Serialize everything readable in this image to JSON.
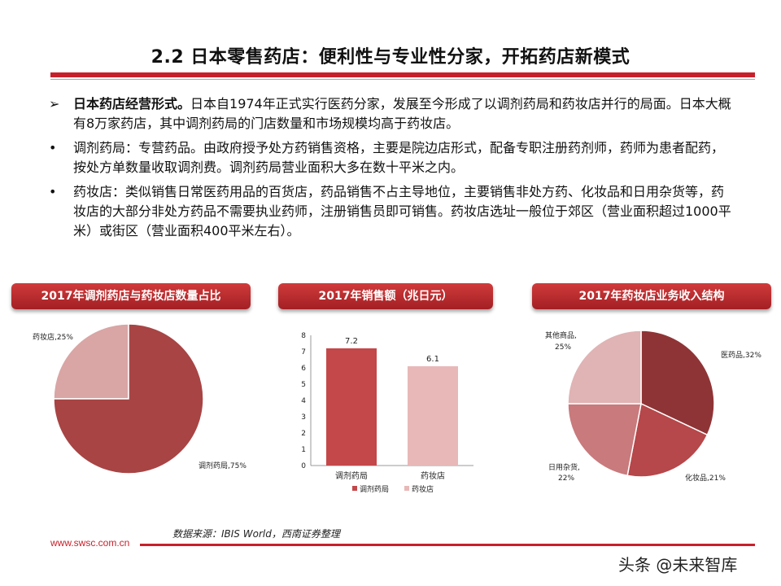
{
  "slide": {
    "title": "2.2 日本零售药店：便利性与专业性分家，开拓药店新模式",
    "bullets": [
      {
        "marker": "➢",
        "bold": "日本药店经营形式。",
        "text": "日本自1974年正式实行医药分家，发展至今形成了以调剂药局和药妆店并行的局面。日本大概有8万家药店，其中调剂药局的门店数量和市场规模均高于药妆店。"
      },
      {
        "marker": "•",
        "bold": "",
        "text": "调剂药局：专营药品。由政府授予处方药销售资格，主要是院边店形式，配备专职注册药剂师，药师为患者配药，按处方单数量收取调剂费。调剂药局营业面积大多在数十平米之内。"
      },
      {
        "marker": "•",
        "bold": "",
        "text": "药妆店：类似销售日常医药用品的百货店，药品销售不占主导地位，主要销售非处方药、化妆品和日用杂货等，药妆店的大部分非处方药品不需要执业药师，注册销售员即可销售。药妆店选址一般位于郊区（营业面积超过1000平米）或街区（营业面积400平米左右）。"
      }
    ],
    "source": "数据来源：IBIS World，西南证券整理",
    "footer_url": "www.swsc.com.cn",
    "watermark": "头条 @未来智库"
  },
  "colors": {
    "accent": "#c8202b",
    "dark_red": "#a84444",
    "pink": "#e8b8b8"
  },
  "chart_data": [
    {
      "type": "pie",
      "title": "2017年调剂药店与药妆店数量占比",
      "slices": [
        {
          "label": "调剂药局",
          "value": 75,
          "text": "调剂药局,75%",
          "color": "#a84444"
        },
        {
          "label": "药妆店",
          "value": 25,
          "text": "药妆店,25%",
          "color": "#d9a5a5"
        }
      ]
    },
    {
      "type": "bar",
      "title": "2017年销售额（兆日元）",
      "categories": [
        "调剂药局",
        "药妆店"
      ],
      "values": [
        7.2,
        6.1
      ],
      "value_labels": [
        "7.2",
        "6.1"
      ],
      "colors": [
        "#c4474a",
        "#e8b8b8"
      ],
      "ylim": [
        0,
        8
      ],
      "yticks": [
        "0",
        "1",
        "2",
        "3",
        "4",
        "5",
        "6",
        "7",
        "8"
      ],
      "legend": [
        "调剂药局",
        "药妆店"
      ]
    },
    {
      "type": "pie",
      "title": "2017年药妆店业务收入结构",
      "slices": [
        {
          "label": "医药品",
          "value": 32,
          "text": "医药品,32%",
          "color": "#8f3436"
        },
        {
          "label": "化妆品",
          "value": 21,
          "text": "化妆品,21%",
          "color": "#b6474a"
        },
        {
          "label": "日用杂货",
          "value": 22,
          "text1": "日用杂货,",
          "text2": "22%",
          "color": "#c97a7c"
        },
        {
          "label": "其他商品",
          "value": 25,
          "text1": "其他商品,",
          "text2": "25%",
          "color": "#e0b3b4"
        }
      ]
    }
  ]
}
